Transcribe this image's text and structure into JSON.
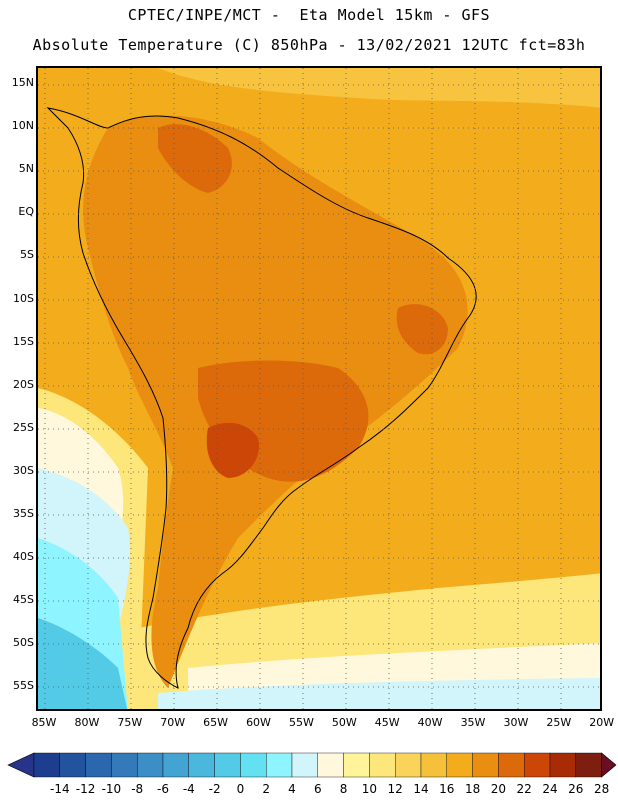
{
  "header": {
    "line1": "CPTEC/INPE/MCT -  Eta Model 15km - GFS",
    "line2": "Absolute Temperature (C) 850hPa - 13/02/2021 12UTC fct=83h"
  },
  "map": {
    "lat_labels": [
      "15N",
      "10N",
      "5N",
      "EQ",
      "5S",
      "10S",
      "15S",
      "20S",
      "25S",
      "30S",
      "35S",
      "40S",
      "45S",
      "50S",
      "55S"
    ],
    "lon_labels": [
      "85W",
      "80W",
      "75W",
      "70W",
      "65W",
      "60W",
      "55W",
      "50W",
      "45W",
      "40W",
      "35W",
      "30W",
      "25W",
      "20W"
    ],
    "background_color": "#f3ad1c"
  },
  "colorbar": {
    "labels": [
      "-14",
      "-12",
      "-10",
      "-8",
      "-6",
      "-4",
      "-2",
      "0",
      "2",
      "4",
      "6",
      "8",
      "10",
      "12",
      "14",
      "16",
      "18",
      "20",
      "22",
      "24",
      "26",
      "28"
    ],
    "colors": [
      "#1d3e8e",
      "#22539d",
      "#2a67ad",
      "#3479b9",
      "#3c8ec6",
      "#43a3d2",
      "#4bb7dd",
      "#53cbe6",
      "#63e1f1",
      "#8ef4ff",
      "#d2f4fb",
      "#fff8dc",
      "#fff49a",
      "#fde67a",
      "#fad45a",
      "#f6c13a",
      "#f2ac1c",
      "#e98e10",
      "#dd6a0a",
      "#cc4607",
      "#a82b07",
      "#7e1e10"
    ],
    "under_color": "#28338a",
    "over_color": "#6a0e23"
  }
}
